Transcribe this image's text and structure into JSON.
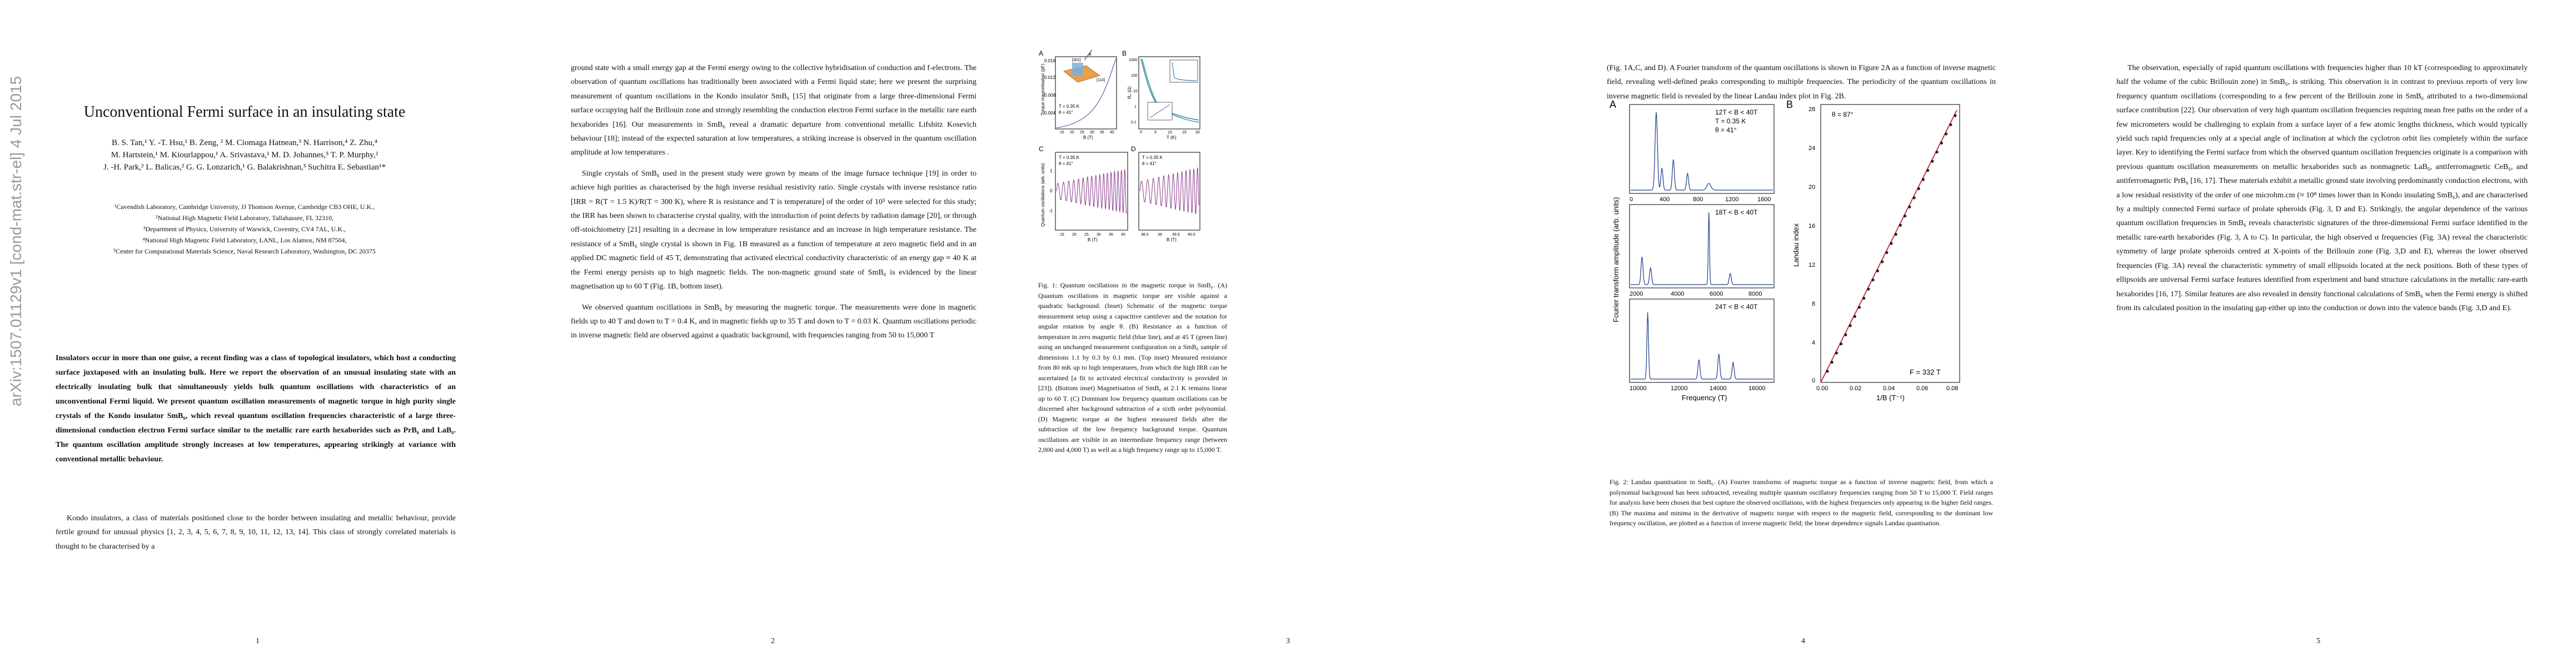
{
  "arxiv_id": "arXiv:1507.01129v1  [cond-mat.str-el]  4 Jul 2015",
  "title": "Unconventional Fermi surface in an insulating state",
  "authors": [
    "B. S. Tan,¹ Y. -T. Hsu,¹ B. Zeng, ² M. Ciomaga Hatnean,³ N. Harrison,⁴ Z. Zhu,⁴",
    "M. Hartstein,¹ M. Kiourlappou,¹ A. Srivastava,¹ M. D. Johannes,⁵ T. P. Murphy,²",
    "J. -H. Park,² L. Balicas,² G. G. Lonzarich,¹ G. Balakrishnan,³ Suchitra E. Sebastian¹*"
  ],
  "affiliations": [
    "¹Cavendish Laboratory, Cambridge University, JJ Thomson Avenue, Cambridge CB3 OHE, U.K.,",
    "²National High Magnetic Field Laboratory, Tallahassee, FL 32310,",
    "³Department of Physics, University of Warwick, Coventry, CV4 7AL, U.K.,",
    "⁴National High Magnetic Field Laboratory, LANL, Los Alamos, NM 87504,",
    "⁵Center for Computational Materials Science, Naval Research Laboratory, Washington, DC 20375"
  ],
  "abstract": "Insulators occur in more than one guise, a recent finding was a class of topological insulators, which host a conducting surface juxtaposed with an insulating bulk. Here we report the observation of an unusual insulating state with an electrically insulating bulk that simultaneously yields bulk quantum oscillations with characteristics of an unconventional Fermi liquid. We present quantum oscillation measurements of magnetic torque in high purity single crystals of the Kondo insulator SmB₆, which reveal quantum oscillation frequencies characteristic of a large three-dimensional conduction electron Fermi surface similar to the metallic rare earth hexaborides such as PrB₆ and LaB₆. The quantum oscillation amplitude strongly increases at low temperatures, appearing strikingly at variance with conventional metallic behaviour.",
  "p1_body": "Kondo insulators, a class of materials positioned close to the border between insulating and metallic behaviour, provide fertile ground for unusual physics [1, 2, 3, 4, 5, 6, 7, 8, 9, 10, 11, 12, 13, 14]. This class of strongly correlated materials is thought to be characterised by a",
  "p2_paragraphs": [
    "ground state with a small energy gap at the Fermi energy owing to the collective hybridisation of conduction and f-electrons. The observation of quantum oscillations has traditionally been associated with a Fermi liquid state; here we present the surprising measurement of quantum oscillations in the Kondo insulator SmB₆ [15] that originate from a large three-dimensional Fermi surface occupying half the Brillouin zone and strongly resembling the conduction electron Fermi surface in the metallic rare earth hexaborides [16]. Our measurements in SmB₆ reveal a dramatic departure from conventional metallic Lifshitz Kosevich behaviour [18]; instead of the expected saturation at low temperatures, a striking increase is observed in the quantum oscillation amplitude at low temperatures .",
    "Single crystals of SmB₆ used in the present study were grown by means of the image furnace technique [19] in order to achieve high purities as characterised by the high inverse residual resistivity ratio. Single crystals with inverse resistance ratio [IRR = R(T = 1.5 K)/R(T = 300 K), where R is resistance and T is temperature] of the order of 10⁵ were selected for this study; the IRR has been shown to characterise crystal quality, with the introduction of point defects by radiation damage [20], or through off-stoichiometry [21] resulting in a decrease in low temperature resistance and an increase in high temperature resistance. The resistance of a SmB₆ single crystal is shown in Fig. 1B measured as a function of temperature at zero magnetic field and in an applied DC magnetic field of 45 T, demonstrating that activated electrical conductivity characteristic of an energy gap ≈ 40 K at the Fermi energy persists up to high magnetic fields. The non-magnetic ground state of SmB₆ is evidenced by the linear magnetisation up to 60 T (Fig. 1B, bottom inset).",
    "We observed quantum oscillations in SmB₆ by measuring the magnetic torque. The measurements were done in magnetic fields up to 40 T and down to T = 0.4 K, and in magnetic fields up to 35 T and down to T = 0.03 K. Quantum oscillations periodic in inverse magnetic field are observed against a quadratic background, with frequencies ranging from 50 to 15,000 T"
  ],
  "fig1": {
    "panel_labels": [
      "A",
      "B",
      "C",
      "D"
    ],
    "a_ylabel": "Torque magnetisation (pF)",
    "a_yticks": [
      "0.016",
      "0.012",
      "0.008",
      "0.004"
    ],
    "a_xticks": [
      "15",
      "20",
      "25",
      "30",
      "35",
      "40"
    ],
    "a_xlabel": "B (T)",
    "a_temp": "T = 0.35 K",
    "a_angle": "θ = 41°",
    "a_inset_labels": [
      "[001]",
      "B",
      "[110]"
    ],
    "b_ylabel": "R₀ (Ω)",
    "b_yticks": [
      "1000",
      "100",
      "10",
      "1",
      "0.1"
    ],
    "b_xticks": [
      "0",
      "5",
      "10",
      "15",
      "20"
    ],
    "b_xlabel": "T (K)",
    "c_ylabel": "Quantum oscillations (arb. units)",
    "c_temp": "T = 0.35 K",
    "c_angle": "θ = 41°",
    "c_xticks": [
      "15",
      "20",
      "25",
      "30",
      "35",
      "40"
    ],
    "c_xlabel": "B (T)",
    "d_temp": "T = 0.35 K",
    "d_angle": "θ = 41°",
    "d_xticks": [
      "38.5",
      "39",
      "39.5",
      "40.0"
    ],
    "d_xlabel": "B (T)",
    "yticks_osc": [
      "1",
      "0",
      "-1"
    ]
  },
  "fig1_caption": "Fig. 1: Quantum oscillations in the magnetic torque in SmB₆. (A) Quantum oscillations in magnetic torque are visible against a quadratic background. (Inset) Schematic of the magnetic torque measurement setup using a capacitive cantilever and the notation for angular rotation by angle θ. (B) Resistance as a function of temperature in zero magnetic field (blue line), and at 45 T (green line) using an unchanged measurement configuration on a SmB₆ sample of dimensions 1.1 by 0.3 by 0.1 mm. (Top inset) Measured resistance from 80 mK up to high temperatures, from which the high IRR can be ascertained [a fit to activated electrical conductivity is provided in [23]). (Bottom inset) Magnetisation of SmB₆ at 2.1 K remains linear up to 60 T. (C) Dominant low frequency quantum oscillations can be discerned after background subtraction of a sixth order polynomial. (D) Magnetic torque at the highest measured fields after the subtraction of the low frequency background torque. Quantum oscillations are visible in an intermediate frequency range (between 2,000 and 4,000 T) as well as a high frequency range up to 15,000 T.",
  "p4_body": "(Fig. 1A,C, and D). A Fourier transform of the quantum oscillations is shown in Figure 2A as a function of inverse magnetic field, revealing well-defined peaks corresponding to multiple frequencies. The periodicity of the quantum oscillations in inverse magnetic field is revealed by the linear Landau index plot in Fig. 2B.",
  "fig2": {
    "panel_a": "A",
    "panel_b": "B",
    "ylabel_a": "Fourier transform amplitude (arb. units)",
    "xlabel_a": "Frequency (T)",
    "sub1": {
      "range": "12T < B < 40T",
      "temp": "T = 0.35 K",
      "angle": "θ = 41°",
      "xticks": [
        "0",
        "400",
        "800",
        "1200",
        "1600"
      ]
    },
    "sub2": {
      "range": "18T < B < 40T",
      "xticks": [
        "2000",
        "4000",
        "6000",
        "8000"
      ]
    },
    "sub3": {
      "range": "24T < B < 40T",
      "xticks": [
        "10000",
        "12000",
        "14000",
        "16000"
      ]
    },
    "b_ylabel": "Landau index",
    "b_xlabel": "1/B (T⁻¹)",
    "b_angle": "θ = 87°",
    "b_freq": "F = 332 T",
    "b_yticks": [
      "28",
      "24",
      "20",
      "16",
      "12",
      "8",
      "4",
      "0"
    ],
    "b_xticks": [
      "0.00",
      "0.02",
      "0.04",
      "0.06",
      "0.08"
    ]
  },
  "fig2_caption": "Fig. 2: Landau quantisation in SmB₆. (A) Fourier transforms of magnetic torque as a function of inverse magnetic field, from which a polynomial background has been subtracted, revealing multiple quantum oscillatory frequencies ranging from 50 T to 15,000 T. Field ranges for analysis have been chosen that best capture the observed oscillations, with the highest frequencies only appearing in the higher field ranges. (B) The maxima and minima in the derivative of magnetic torque with respect to the magnetic field, corresponding to the dominant low frequency oscillation, are plotted as a function of inverse magnetic field; the linear dependence signals Landau quantisation.",
  "p5_body": "The observation, especially of rapid quantum oscillations with frequencies higher than 10 kT (corresponding to approximately half the volume of the cubic Brillouin zone) in SmB₆, is striking. This observation is in contrast to previous reports of very low frequency quantum oscillations (corresponding to a few percent of the Brillouin zone in SmB₆ attributed to a two-dimensional surface contribution [22]. Our observation of very high quantum oscillation frequencies requiring mean free paths on the order of a few micrometers would be challenging to explain from a surface layer of a few atomic lengths thickness, which would typically yield such rapid frequencies only at a special angle of inclination at which the cyclotron orbit lies completely within the surface layer. Key to identifying the Fermi surface from which the observed quantum oscillation frequencies originate is a comparison with previous quantum oscillation measurements on metallic hexaborides such as nonmagnetic LaB₆, antiferromagnetic CeB₆, and antiferromagnetic PrB₆ [16, 17]. These materials exhibit a metallic ground state involving predominantly conduction electrons, with a low residual resistivity of the order of one microhm.cm (≈ 10⁸ times lower than in Kondo insulating SmB₆), and are characterised by a multiply connected Fermi surface of prolate spheroids (Fig. 3, D and E). Strikingly, the angular dependence of the various quantum oscillation frequencies in SmB₆ reveals characteristic signatures of the three-dimensional Fermi surface identified in the metallic rare-earth hexaborides (Fig. 3, A to C). In particular, the high observed α frequencies (Fig. 3A) reveal the characteristic symmetry of large prolate spheroids centred at X-points of the Brillouin zone (Fig. 3,D and E), whereas the lower observed frequencies (Fig. 3A) reveal the characteristic symmetry of small ellipsoids located at the neck positions. Both of these types of ellipsoids are universal Fermi surface features identified from experiment and band structure calculations in the metallic rare-earth hexaborides [16, 17]. Similar features are also revealed in density functional calculations of SmB₆ when the Fermi energy is shifted from its calculated position in the insulating gap either up into the conduction or down into the valence bands (Fig. 3,D and E).",
  "page_numbers": [
    "1",
    "2",
    "3",
    "4",
    "5"
  ]
}
